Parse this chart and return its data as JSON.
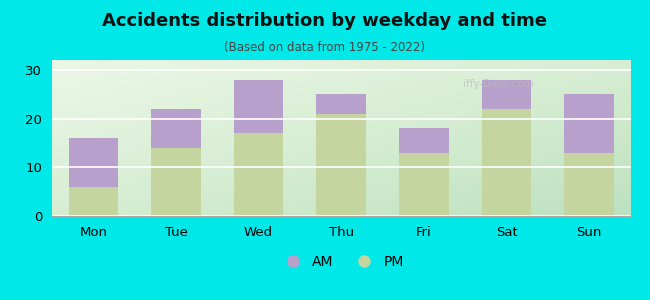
{
  "categories": [
    "Mon",
    "Tue",
    "Wed",
    "Thu",
    "Fri",
    "Sat",
    "Sun"
  ],
  "pm_values": [
    6,
    14,
    17,
    21,
    13,
    22,
    13
  ],
  "am_values": [
    10,
    8,
    11,
    4,
    5,
    6,
    12
  ],
  "am_color": "#b8a0cc",
  "pm_color": "#c5d5a0",
  "title": "Accidents distribution by weekday and time",
  "subtitle": "(Based on data from 1975 - 2022)",
  "ylim": [
    0,
    32
  ],
  "yticks": [
    0,
    10,
    20,
    30
  ],
  "background_color": "#00e8e8",
  "plot_bg_top": "#f5faf0",
  "plot_bg_bottom": "#e0edd0",
  "bar_width": 0.6,
  "watermark": "iffy-Data.com"
}
